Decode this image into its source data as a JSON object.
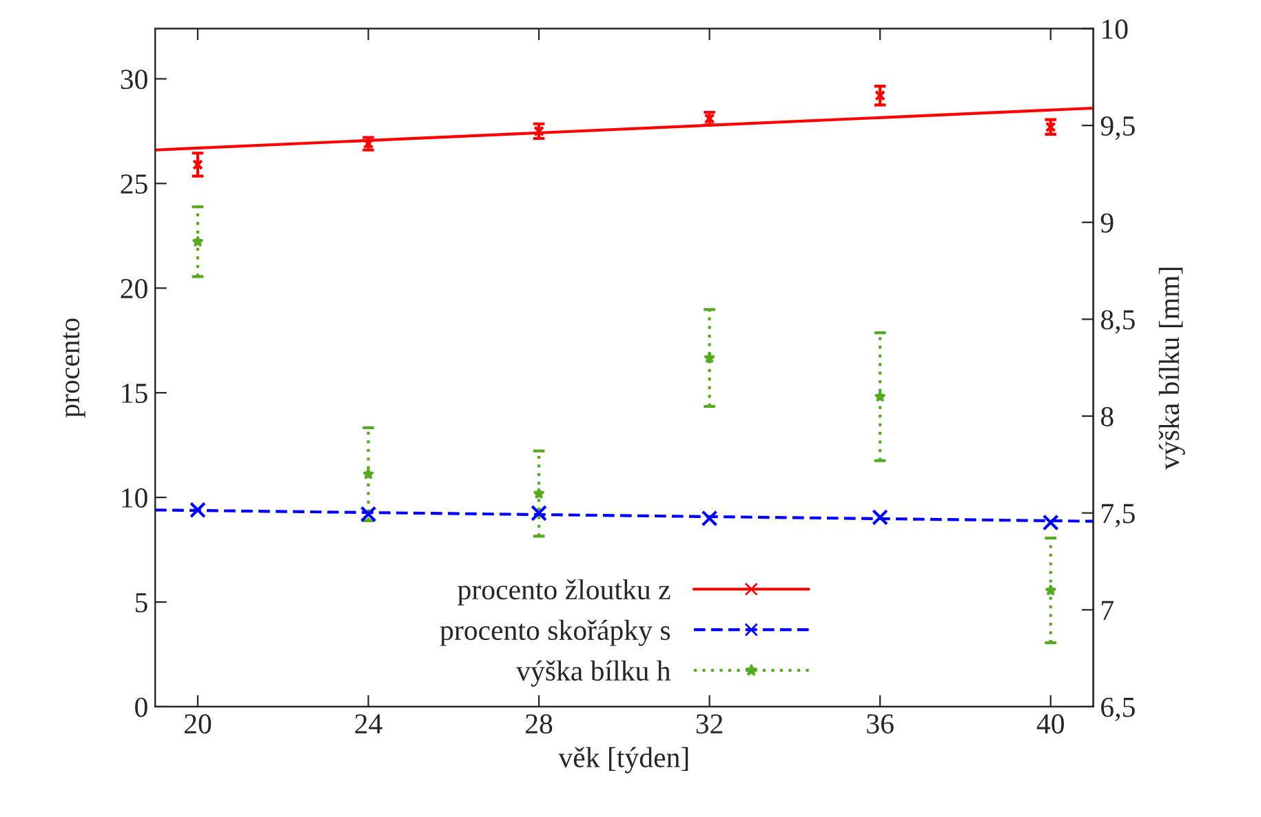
{
  "chart_data": {
    "type": "scatter",
    "xlabel": "věk [týden]",
    "ylabel": "procento",
    "y2label": "výška bílku [mm]",
    "xlim": [
      19,
      41
    ],
    "xticks": [
      20,
      24,
      28,
      32,
      36,
      40
    ],
    "ylim": [
      0,
      32.4
    ],
    "yticks": [
      0,
      5,
      10,
      15,
      20,
      25,
      30
    ],
    "y2lim": [
      6.5,
      10
    ],
    "y2ticks": [
      {
        "value": 6.5,
        "label": "6,5"
      },
      7,
      {
        "value": 7.5,
        "label": "7,5"
      },
      8,
      {
        "value": 8.5,
        "label": "8,5"
      },
      9,
      {
        "value": 9.5,
        "label": "9,5"
      },
      10
    ],
    "grid": false,
    "legend": "bottom",
    "series": [
      {
        "type": "scatter",
        "name": "procento žloutku z",
        "color": "#ff0000",
        "marker": "cross",
        "line_style": "solid",
        "x": [
          20,
          24,
          28,
          32,
          36,
          40
        ],
        "values": [
          25.9,
          26.9,
          27.5,
          28.1,
          29.2,
          27.7
        ],
        "errors": [
          0.55,
          0.3,
          0.35,
          0.3,
          0.45,
          0.35
        ]
      },
      {
        "type": "line",
        "color": "#ff0000",
        "line_style": "solid",
        "marker": "none",
        "x": [
          19,
          41
        ],
        "values": [
          26.6,
          28.6
        ]
      },
      {
        "type": "scatter",
        "name": "procento skořápky s",
        "color": "#0000ff",
        "marker": "cross",
        "line_style": "dashed",
        "x": [
          20,
          24,
          28,
          32,
          36,
          40
        ],
        "values": [
          9.4,
          9.2,
          9.25,
          9.0,
          9.05,
          8.8
        ]
      },
      {
        "type": "line",
        "color": "#0000ff",
        "line_style": "dashed",
        "marker": "none",
        "x": [
          19,
          41
        ],
        "values": [
          9.4,
          8.86
        ]
      },
      {
        "type": "scatter",
        "name": "výška bílku h",
        "color": "#55aa22",
        "marker": "star",
        "line_style": "dotted",
        "axis": "y2",
        "x": [
          20,
          24,
          28,
          32,
          36,
          40
        ],
        "values": [
          8.9,
          7.7,
          7.6,
          8.3,
          8.1,
          7.1
        ],
        "errors": [
          0.18,
          0.24,
          0.22,
          0.25,
          0.33,
          0.27
        ]
      }
    ]
  }
}
